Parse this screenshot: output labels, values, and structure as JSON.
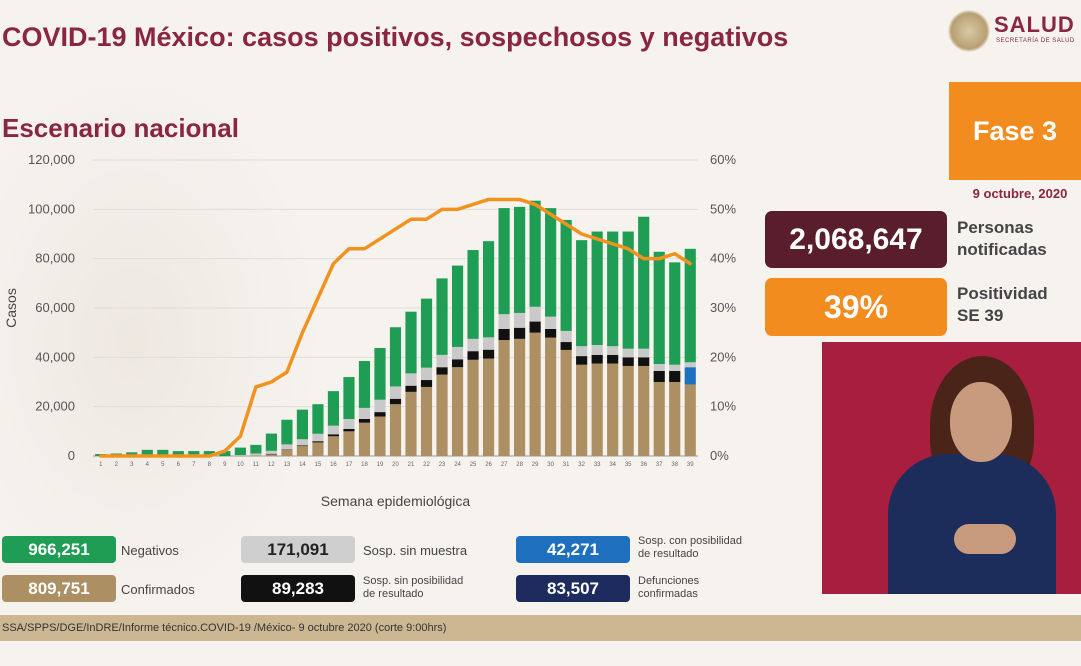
{
  "header": {
    "title": "COVID-19 México: casos positivos, sospechosos y negativos",
    "subtitle": "Escenario nacional",
    "logo_text": "SALUD",
    "logo_subtext": "SECRETARÍA DE SALUD"
  },
  "panel": {
    "phase": "Fase 3",
    "date": "9 octubre, 2020",
    "notified_value": "2,068,647",
    "notified_label_1": "Personas",
    "notified_label_2": "notificadas",
    "positivity_value": "39%",
    "positivity_label_1": "Positividad",
    "positivity_label_2": "SE 39"
  },
  "colors": {
    "negativos": "#1f9d55",
    "sin_muestra": "#c9c9c9",
    "sin_posibilidad": "#111111",
    "con_posibilidad": "#1f6fbf",
    "confirmados": "#ad8f64",
    "defunciones": "#1d2b5e",
    "positividad": "#f2921e",
    "accent": "#8a2543"
  },
  "legend": {
    "negativos_value": "966,251",
    "negativos_label": "Negativos",
    "confirmados_value": "809,751",
    "confirmados_label": "Confirmados",
    "sin_muestra_value": "171,091",
    "sin_muestra_label": "Sosp. sin muestra",
    "sin_posibilidad_value": "89,283",
    "sin_posibilidad_label_1": "Sosp. sin posibilidad",
    "sin_posibilidad_label_2": "de resultado",
    "con_posibilidad_value": "42,271",
    "con_posibilidad_label_1": "Sosp. con posibilidad",
    "con_posibilidad_label_2": "de resultado",
    "defunciones_value": "83,507",
    "defunciones_label_1": "Defunciones",
    "defunciones_label_2": "confirmadas"
  },
  "source": "SSA/SPPS/DGE/InDRE/Informe técnico.COVID-19 /México- 9 octubre 2020 (corte 9:00hrs)",
  "chart_data": {
    "type": "bar",
    "stacked": true,
    "xlabel": "Semana epidemiológica",
    "ylabel": "Casos",
    "ylim": [
      0,
      120000
    ],
    "yticks": [
      "0",
      "20,000",
      "40,000",
      "60,000",
      "80,000",
      "100,000",
      "120,000"
    ],
    "y2lim": [
      0,
      60
    ],
    "y2ticks": [
      "0%",
      "10%",
      "20%",
      "30%",
      "40%",
      "50%",
      "60%"
    ],
    "grid": true,
    "categories": [
      "1",
      "2",
      "3",
      "4",
      "5",
      "6",
      "7",
      "8",
      "9",
      "10",
      "11",
      "12",
      "13",
      "14",
      "15",
      "16",
      "17",
      "18",
      "19",
      "20",
      "21",
      "22",
      "23",
      "24",
      "25",
      "26",
      "27",
      "28",
      "29",
      "30",
      "31",
      "32",
      "33",
      "34",
      "35",
      "36",
      "37",
      "38",
      "39"
    ],
    "series": [
      {
        "name": "Confirmados",
        "values": [
          0,
          0,
          0,
          0,
          0,
          0,
          0,
          0,
          0,
          100,
          300,
          800,
          2500,
          4000,
          5500,
          8000,
          10000,
          13500,
          16000,
          21000,
          26000,
          28000,
          33000,
          36000,
          39000,
          39500,
          47000,
          47500,
          50000,
          48000,
          43000,
          37000,
          37500,
          37500,
          36500,
          36500,
          30000,
          30000,
          29000
        ]
      },
      {
        "name": "Sosp. sin posibilidad de resultado",
        "values": [
          0,
          0,
          0,
          0,
          0,
          0,
          0,
          0,
          0,
          0,
          0,
          100,
          200,
          300,
          500,
          800,
          1000,
          1500,
          1800,
          2200,
          2500,
          2800,
          3000,
          3200,
          3500,
          3600,
          4500,
          4500,
          4500,
          3500,
          3200,
          3500,
          3500,
          3500,
          3500,
          3500,
          4500,
          4500,
          0
        ]
      },
      {
        "name": "Sosp. con posibilidad de resultado",
        "values": [
          0,
          0,
          0,
          0,
          0,
          0,
          0,
          0,
          0,
          0,
          0,
          0,
          0,
          0,
          0,
          0,
          0,
          0,
          0,
          0,
          0,
          0,
          0,
          0,
          0,
          0,
          0,
          0,
          0,
          0,
          0,
          0,
          0,
          0,
          0,
          0,
          0,
          0,
          7000
        ]
      },
      {
        "name": "Sosp. sin muestra",
        "values": [
          0,
          0,
          0,
          0,
          0,
          0,
          0,
          0,
          0,
          300,
          700,
          1200,
          2000,
          2500,
          3000,
          3500,
          4000,
          4500,
          5000,
          5000,
          5000,
          5000,
          5000,
          5000,
          5000,
          5000,
          6000,
          6000,
          6000,
          5000,
          4500,
          4000,
          4000,
          3500,
          3500,
          3500,
          2800,
          2500,
          2000
        ]
      },
      {
        "name": "Negativos",
        "values": [
          800,
          1000,
          1500,
          2500,
          2500,
          2000,
          2000,
          2000,
          2000,
          3000,
          3500,
          7000,
          10000,
          12000,
          12000,
          14000,
          17000,
          19000,
          21000,
          24000,
          25000,
          28000,
          31000,
          33000,
          36000,
          39000,
          43000,
          43000,
          43000,
          44000,
          45000,
          43000,
          46000,
          46500,
          47500,
          53500,
          45500,
          41500,
          46000
        ]
      }
    ],
    "positivity": {
      "name": "Positividad",
      "values": [
        0,
        0,
        0,
        0,
        0,
        0,
        0,
        0,
        1,
        4,
        14,
        15,
        17,
        25,
        32,
        39,
        42,
        42,
        44,
        46,
        48,
        48,
        50,
        50,
        51,
        52,
        52,
        52,
        51,
        49,
        47,
        45,
        44,
        43,
        42,
        40,
        40,
        41,
        39
      ]
    }
  }
}
